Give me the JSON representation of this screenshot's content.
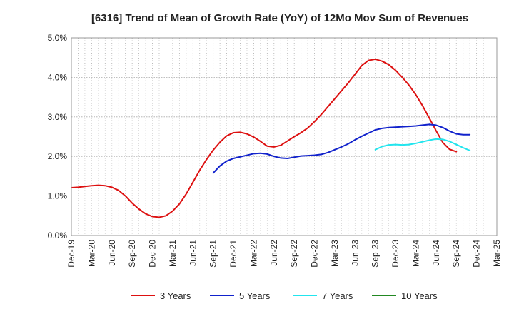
{
  "chart_data": {
    "type": "line",
    "title": "[6316]  Trend of Mean of Growth Rate (YoY) of 12Mo Mov Sum of Revenues",
    "xlabel": "",
    "ylabel": "",
    "ylim": [
      0,
      5
    ],
    "grid": true,
    "legend_position": "bottom",
    "y_ticks": [
      {
        "value": 0,
        "label": "0.0%"
      },
      {
        "value": 1,
        "label": "1.0%"
      },
      {
        "value": 2,
        "label": "2.0%"
      },
      {
        "value": 3,
        "label": "3.0%"
      },
      {
        "value": 4,
        "label": "4.0%"
      },
      {
        "value": 5,
        "label": "5.0%"
      }
    ],
    "x_start": "Dec-19",
    "x_ticks": [
      "Dec-19",
      "Mar-20",
      "Jun-20",
      "Sep-20",
      "Dec-20",
      "Mar-21",
      "Jun-21",
      "Sep-21",
      "Dec-21",
      "Mar-22",
      "Jun-22",
      "Sep-22",
      "Dec-22",
      "Mar-23",
      "Jun-23",
      "Sep-23",
      "Dec-23",
      "Mar-24",
      "Jun-24",
      "Sep-24",
      "Dec-24",
      "Mar-25"
    ],
    "series": [
      {
        "name": "3 Years",
        "color": "#dd1111",
        "start_index": 0,
        "values": [
          1.21,
          1.22,
          1.24,
          1.26,
          1.27,
          1.26,
          1.22,
          1.14,
          1.0,
          0.82,
          0.67,
          0.55,
          0.48,
          0.46,
          0.5,
          0.62,
          0.8,
          1.05,
          1.35,
          1.65,
          1.92,
          2.16,
          2.36,
          2.52,
          2.6,
          2.61,
          2.57,
          2.49,
          2.38,
          2.26,
          2.24,
          2.28,
          2.39,
          2.5,
          2.6,
          2.72,
          2.88,
          3.06,
          3.26,
          3.46,
          3.66,
          3.86,
          4.08,
          4.3,
          4.43,
          4.46,
          4.41,
          4.32,
          4.18,
          4.0,
          3.8,
          3.56,
          3.28,
          2.97,
          2.65,
          2.35,
          2.18,
          2.12
        ]
      },
      {
        "name": "5 Years",
        "color": "#1122cc",
        "start_index": 21,
        "values": [
          1.58,
          1.76,
          1.88,
          1.95,
          1.99,
          2.03,
          2.07,
          2.08,
          2.06,
          2.0,
          1.96,
          1.95,
          1.98,
          2.01,
          2.02,
          2.03,
          2.05,
          2.1,
          2.17,
          2.24,
          2.32,
          2.42,
          2.51,
          2.59,
          2.67,
          2.71,
          2.73,
          2.74,
          2.75,
          2.76,
          2.77,
          2.79,
          2.81,
          2.79,
          2.73,
          2.64,
          2.57,
          2.55,
          2.55
        ]
      },
      {
        "name": "7 Years",
        "color": "#22e5ee",
        "start_index": 45,
        "values": [
          2.17,
          2.25,
          2.29,
          2.3,
          2.29,
          2.3,
          2.33,
          2.37,
          2.41,
          2.44,
          2.43,
          2.38,
          2.3,
          2.22,
          2.15
        ]
      },
      {
        "name": "10 Years",
        "color": "#228822",
        "start_index": 0,
        "values": []
      }
    ]
  }
}
